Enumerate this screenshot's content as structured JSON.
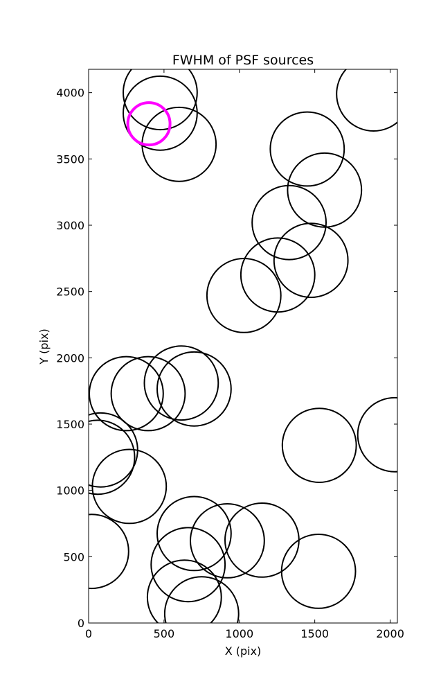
{
  "chart_data": {
    "type": "scatter",
    "title": "FWHM of PSF sources",
    "xlabel": "X (pix)",
    "ylabel": "Y (pix)",
    "xlim": [
      0,
      2048
    ],
    "ylim": [
      0,
      4176
    ],
    "xticks": [
      0,
      500,
      1000,
      1500,
      2000
    ],
    "yticks": [
      0,
      500,
      1000,
      1500,
      2000,
      2500,
      3000,
      3500,
      4000
    ],
    "xtick_labels": [
      "0",
      "500",
      "1000",
      "1500",
      "2000"
    ],
    "ytick_labels": [
      "0",
      "500",
      "1000",
      "1500",
      "2000",
      "2500",
      "3000",
      "3500",
      "4000"
    ],
    "grid": false,
    "marker_color": "#000000",
    "highlight_color": "#ff00ff",
    "series": [
      {
        "marker": "open-circle",
        "color": "#000000",
        "points": [
          {
            "x": 475,
            "y": 4000,
            "r": 245
          },
          {
            "x": 475,
            "y": 3845,
            "r": 245
          },
          {
            "x": 600,
            "y": 3610,
            "r": 245
          },
          {
            "x": 1890,
            "y": 3990,
            "r": 245
          },
          {
            "x": 1450,
            "y": 3575,
            "r": 245
          },
          {
            "x": 1565,
            "y": 3265,
            "r": 245
          },
          {
            "x": 1330,
            "y": 3020,
            "r": 245
          },
          {
            "x": 1475,
            "y": 2735,
            "r": 245
          },
          {
            "x": 1255,
            "y": 2625,
            "r": 245
          },
          {
            "x": 1030,
            "y": 2470,
            "r": 245
          },
          {
            "x": 250,
            "y": 1730,
            "r": 245
          },
          {
            "x": 395,
            "y": 1730,
            "r": 245
          },
          {
            "x": 615,
            "y": 1810,
            "r": 245
          },
          {
            "x": 700,
            "y": 1765,
            "r": 245
          },
          {
            "x": 2030,
            "y": 1420,
            "r": 245
          },
          {
            "x": 1530,
            "y": 1340,
            "r": 245
          },
          {
            "x": 80,
            "y": 1305,
            "r": 245
          },
          {
            "x": 60,
            "y": 1250,
            "r": 245
          },
          {
            "x": 270,
            "y": 1030,
            "r": 245
          },
          {
            "x": 20,
            "y": 540,
            "r": 245
          },
          {
            "x": 700,
            "y": 675,
            "r": 245
          },
          {
            "x": 920,
            "y": 620,
            "r": 245
          },
          {
            "x": 1150,
            "y": 625,
            "r": 245
          },
          {
            "x": 660,
            "y": 440,
            "r": 245
          },
          {
            "x": 1525,
            "y": 390,
            "r": 245
          },
          {
            "x": 635,
            "y": 195,
            "r": 245
          },
          {
            "x": 750,
            "y": 70,
            "r": 245
          }
        ]
      },
      {
        "marker": "open-circle",
        "color": "#ff00ff",
        "points": [
          {
            "x": 400,
            "y": 3765,
            "r": 140
          }
        ]
      }
    ]
  }
}
